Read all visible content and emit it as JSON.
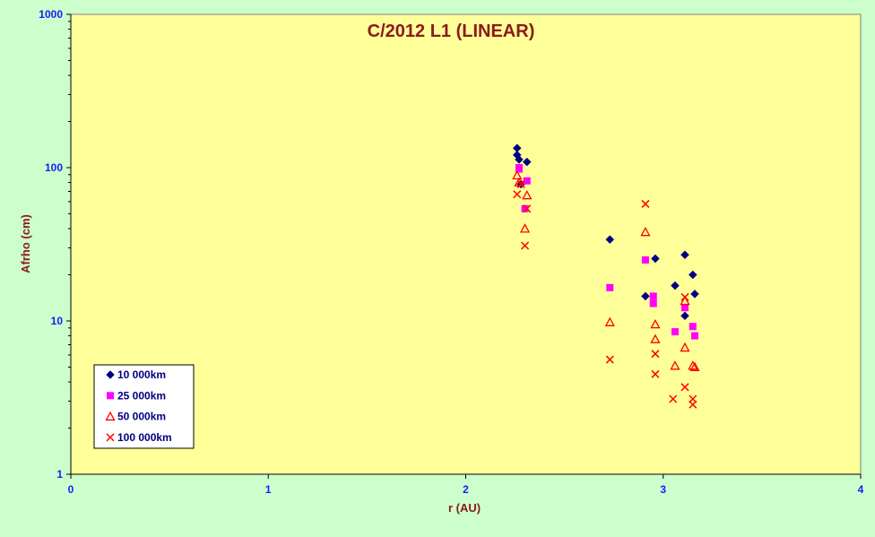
{
  "chart_data": {
    "type": "scatter",
    "title": "C/2012 L1 (LINEAR)",
    "xlabel": "r (AU)",
    "ylabel": "Afrho (cm)",
    "xlim": [
      0,
      4
    ],
    "ylim": [
      1,
      1000
    ],
    "y_scale": "log",
    "x_ticks": [
      "0",
      "1",
      "2",
      "3",
      "4"
    ],
    "y_ticks": [
      "1",
      "10",
      "100",
      "1000"
    ],
    "grid": false,
    "legend_position": "bottom-left",
    "series": [
      {
        "name": "10 000km",
        "color": "#000080",
        "marker": "diamond",
        "points": [
          [
            2.26,
            134
          ],
          [
            2.26,
            121
          ],
          [
            2.27,
            113
          ],
          [
            2.31,
            109
          ],
          [
            2.28,
            78
          ],
          [
            2.73,
            34
          ],
          [
            2.91,
            14.5
          ],
          [
            2.96,
            25.5
          ],
          [
            3.06,
            17
          ],
          [
            3.11,
            27
          ],
          [
            3.11,
            10.8
          ],
          [
            3.15,
            20
          ],
          [
            3.16,
            15
          ]
        ]
      },
      {
        "name": "25 000km",
        "color": "#ff00ff",
        "marker": "square",
        "points": [
          [
            2.27,
            100
          ],
          [
            2.27,
            98
          ],
          [
            2.31,
            82
          ],
          [
            2.3,
            54
          ],
          [
            2.73,
            16.5
          ],
          [
            2.91,
            25
          ],
          [
            2.95,
            14.5
          ],
          [
            2.95,
            13
          ],
          [
            3.06,
            8.5
          ],
          [
            3.11,
            12.2
          ],
          [
            3.15,
            9.2
          ],
          [
            3.16,
            8
          ]
        ]
      },
      {
        "name": "50 000km",
        "color": "#ff0000",
        "marker": "triangle",
        "points": [
          [
            2.26,
            89
          ],
          [
            2.27,
            80
          ],
          [
            2.31,
            66
          ],
          [
            2.3,
            40
          ],
          [
            2.73,
            9.8
          ],
          [
            2.91,
            38
          ],
          [
            2.96,
            9.5
          ],
          [
            2.96,
            7.6
          ],
          [
            3.06,
            5.1
          ],
          [
            3.11,
            13.5
          ],
          [
            3.11,
            6.7
          ],
          [
            3.15,
            5.1
          ],
          [
            3.16,
            5
          ]
        ]
      },
      {
        "name": "100 000km",
        "color": "#ff0000",
        "marker": "x",
        "points": [
          [
            2.26,
            67
          ],
          [
            2.28,
            78
          ],
          [
            2.31,
            54
          ],
          [
            2.3,
            31
          ],
          [
            2.73,
            5.6
          ],
          [
            2.91,
            58
          ],
          [
            2.96,
            6.1
          ],
          [
            2.96,
            4.5
          ],
          [
            3.05,
            3.1
          ],
          [
            3.11,
            14.3
          ],
          [
            3.11,
            3.7
          ],
          [
            3.15,
            3.1
          ],
          [
            3.15,
            2.85
          ]
        ]
      }
    ]
  }
}
